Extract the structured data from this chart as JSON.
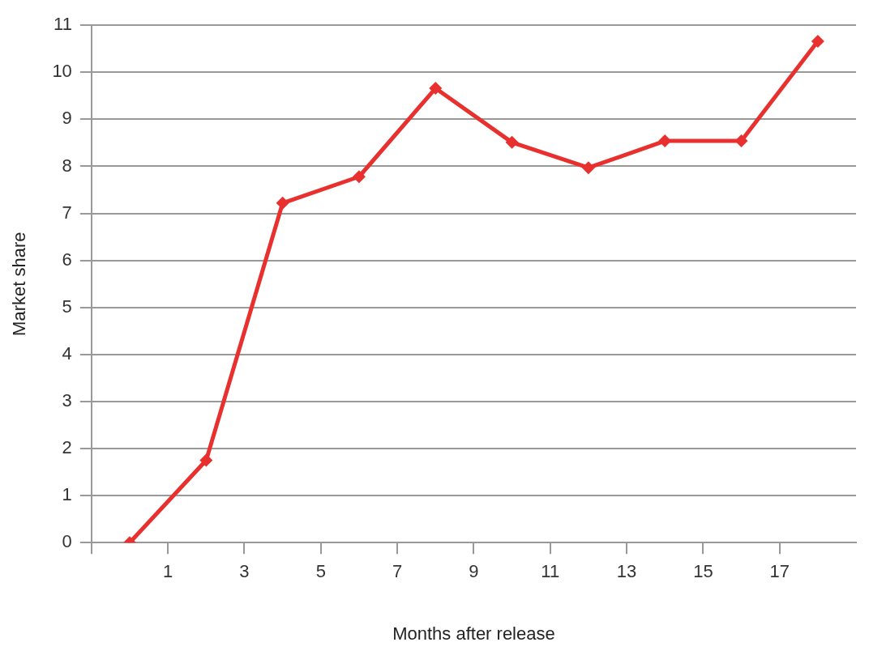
{
  "chart_data": {
    "type": "line",
    "xlabel": "Months after release",
    "ylabel": "Market share",
    "x": [
      0,
      2,
      4,
      6,
      8,
      10,
      12,
      14,
      16,
      18
    ],
    "series": [
      {
        "color": "#e8302e",
        "values": [
          0,
          1.75,
          7.22,
          7.78,
          9.66,
          8.51,
          7.97,
          8.54,
          8.54,
          10.66
        ]
      }
    ],
    "xlim": [
      -1,
      19
    ],
    "xticks": [
      {
        "value": -1,
        "label": null
      },
      1,
      3,
      5,
      7,
      9,
      11,
      13,
      15,
      17
    ],
    "ylim": [
      0,
      11
    ],
    "yticks": [
      0,
      1,
      2,
      3,
      4,
      5,
      6,
      7,
      8,
      9,
      10,
      11
    ],
    "grid": "y",
    "legend": false,
    "marker": "diamond",
    "line_style": "solid"
  }
}
